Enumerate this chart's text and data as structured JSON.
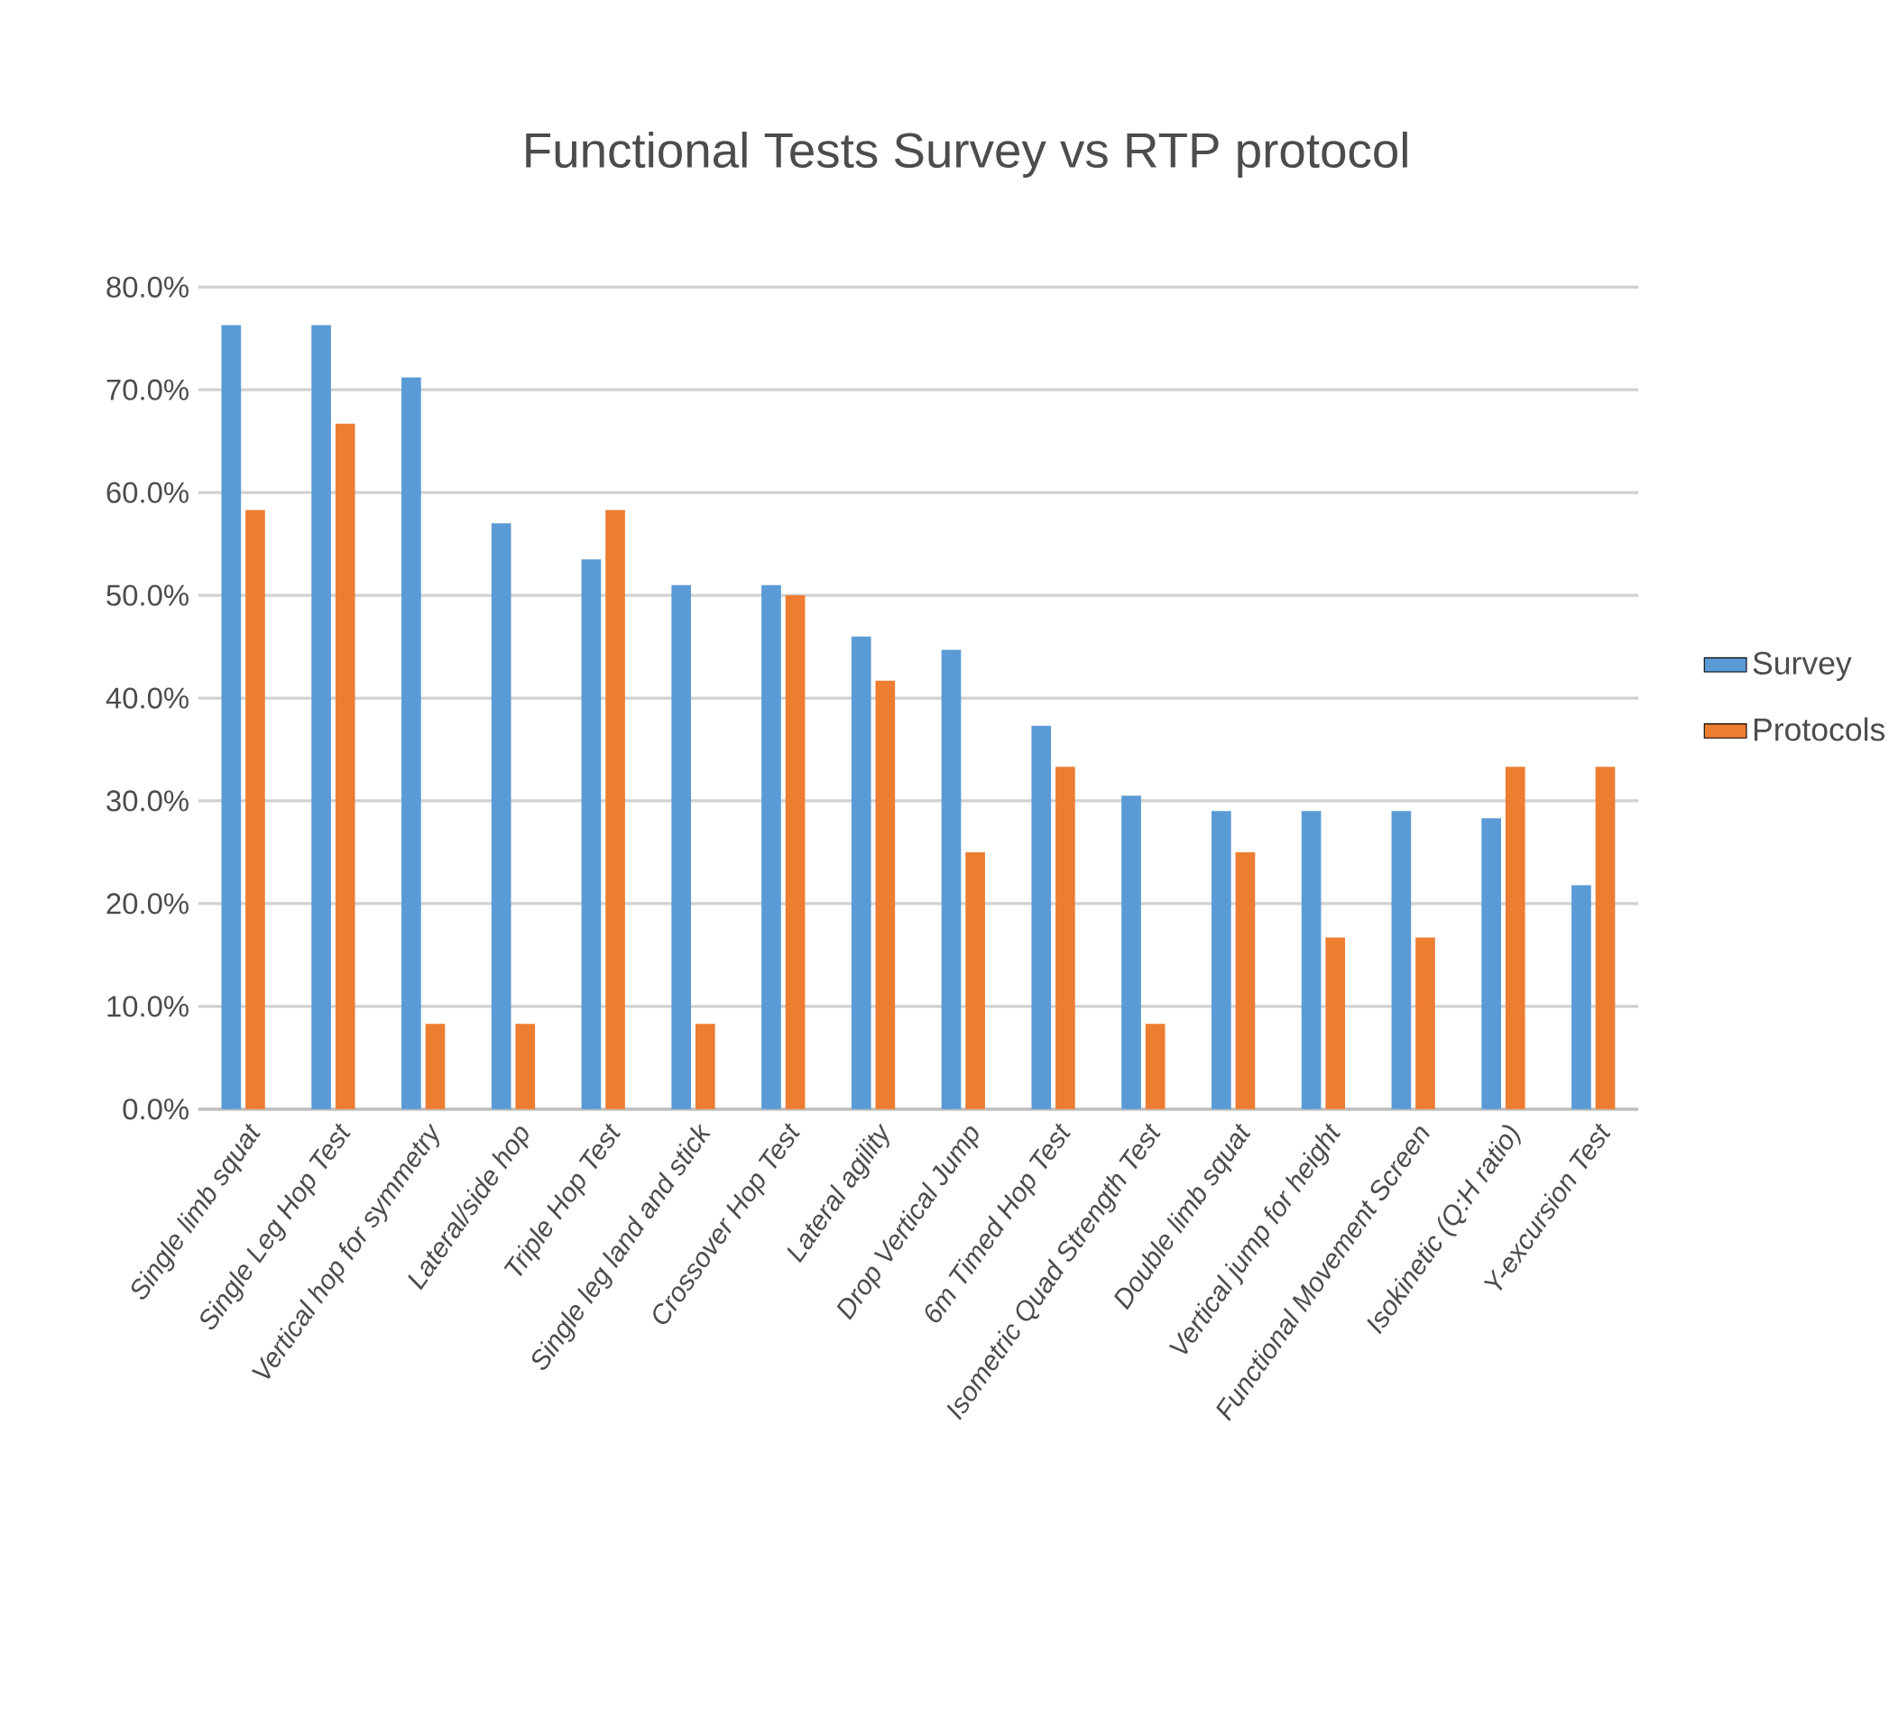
{
  "chart_data": {
    "type": "bar",
    "title": "Functional Tests Survey vs RTP protocol",
    "categories": [
      "Single limb squat",
      "Single Leg Hop Test",
      "Vertical hop for symmetry",
      "Lateral/side hop",
      "Triple Hop Test",
      "Single leg land and stick",
      "Crossover Hop Test",
      "Lateral agility",
      "Drop Vertical Jump",
      "6m Timed Hop Test",
      "Isometric Quad Strength Test",
      "Double limb squat",
      "Vertical jump for height",
      "Functional Movement Screen",
      "Isokinetic (Q:H ratio)",
      "Y-excursion Test"
    ],
    "series": [
      {
        "name": "Survey",
        "color": "#5b9bd5",
        "values": [
          76.3,
          76.3,
          71.2,
          57.0,
          53.5,
          51.0,
          51.0,
          46.0,
          44.7,
          37.3,
          30.5,
          29.0,
          29.0,
          29.0,
          28.3,
          21.8
        ]
      },
      {
        "name": "Protocols",
        "color": "#ed7d31",
        "values": [
          58.3,
          66.7,
          8.3,
          8.3,
          58.3,
          8.3,
          50.0,
          41.7,
          25.0,
          33.3,
          8.3,
          25.0,
          16.7,
          16.7,
          33.3,
          33.3
        ]
      }
    ],
    "ylim": [
      0,
      80
    ],
    "yticks": [
      {
        "value": 0,
        "label": "0.0%"
      },
      {
        "value": 10,
        "label": "10.0%"
      },
      {
        "value": 20,
        "label": "20.0%"
      },
      {
        "value": 30,
        "label": "30.0%"
      },
      {
        "value": 40,
        "label": "40.0%"
      },
      {
        "value": 50,
        "label": "50.0%"
      },
      {
        "value": 60,
        "label": "60.0%"
      },
      {
        "value": 70,
        "label": "70.0%"
      },
      {
        "value": 80,
        "label": "80.0%"
      }
    ],
    "grid": "y",
    "legend": "right"
  }
}
